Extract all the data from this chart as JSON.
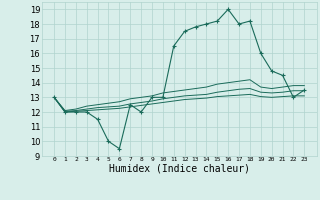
{
  "xlabel": "Humidex (Indice chaleur)",
  "x_values": [
    0,
    1,
    2,
    3,
    4,
    5,
    6,
    7,
    8,
    9,
    10,
    11,
    12,
    13,
    14,
    15,
    16,
    17,
    18,
    19,
    20,
    21,
    22,
    23
  ],
  "main_line": [
    13,
    12,
    12,
    12,
    11.5,
    10,
    9.5,
    12.5,
    12,
    13,
    13,
    16.5,
    17.5,
    17.8,
    18,
    18.2,
    19,
    18,
    18.2,
    16,
    14.8,
    14.5,
    13,
    13.5
  ],
  "upper_line": [
    13,
    12.1,
    12.2,
    12.4,
    12.5,
    12.6,
    12.7,
    12.9,
    13.0,
    13.1,
    13.3,
    13.4,
    13.5,
    13.6,
    13.7,
    13.9,
    14.0,
    14.1,
    14.2,
    13.7,
    13.6,
    13.7,
    13.8,
    13.8
  ],
  "mid_line": [
    13,
    12.05,
    12.1,
    12.2,
    12.3,
    12.35,
    12.4,
    12.55,
    12.65,
    12.75,
    12.9,
    13.0,
    13.1,
    13.15,
    13.2,
    13.35,
    13.45,
    13.55,
    13.6,
    13.35,
    13.3,
    13.35,
    13.45,
    13.45
  ],
  "lower_line": [
    13,
    12.0,
    12.05,
    12.1,
    12.15,
    12.2,
    12.25,
    12.35,
    12.45,
    12.55,
    12.65,
    12.75,
    12.85,
    12.9,
    12.95,
    13.05,
    13.1,
    13.15,
    13.2,
    13.05,
    13.0,
    13.05,
    13.1,
    13.1
  ],
  "line_color": "#1a6b5a",
  "bg_color": "#d8eeea",
  "grid_color": "#b0d4ce",
  "ylim": [
    9,
    19.5
  ],
  "yticks": [
    9,
    10,
    11,
    12,
    13,
    14,
    15,
    16,
    17,
    18,
    19
  ],
  "xticks": [
    0,
    1,
    2,
    3,
    4,
    5,
    6,
    7,
    8,
    9,
    10,
    11,
    12,
    13,
    14,
    15,
    16,
    17,
    18,
    19,
    20,
    21,
    22,
    23
  ],
  "xlabel_fontsize": 7,
  "xtick_fontsize": 4.5,
  "ytick_fontsize": 6
}
